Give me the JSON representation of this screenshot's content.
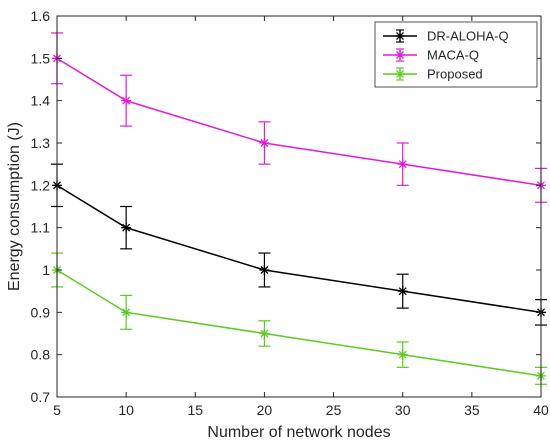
{
  "chart_data": {
    "type": "line",
    "title": "",
    "xlabel": "Number of network nodes",
    "ylabel": "Energy consumption (J)",
    "xlim": [
      5,
      40
    ],
    "ylim": [
      0.7,
      1.6
    ],
    "xticks": [
      5,
      10,
      15,
      20,
      25,
      30,
      35,
      40
    ],
    "yticks": [
      0.7,
      0.8,
      0.9,
      1.0,
      1.1,
      1.2,
      1.3,
      1.4,
      1.5,
      1.6
    ],
    "xtick_labels": [
      "5",
      "10",
      "15",
      "20",
      "25",
      "30",
      "35",
      "40"
    ],
    "ytick_labels": [
      "0.7",
      "0.8",
      "0.9",
      "1",
      "1.1",
      "1.2",
      "1.3",
      "1.4",
      "1.5",
      "1.6"
    ],
    "grid": false,
    "legend_position": "top-right",
    "x": [
      5,
      10,
      20,
      30,
      40
    ],
    "series": [
      {
        "name": "DR-ALOHA-Q",
        "color": "#000000",
        "marker": "star",
        "values": [
          1.2,
          1.1,
          1.0,
          0.95,
          0.9
        ],
        "errors": [
          0.05,
          0.05,
          0.04,
          0.04,
          0.03
        ]
      },
      {
        "name": "MACA-Q",
        "color": "#e31ad8",
        "marker": "star",
        "values": [
          1.5,
          1.4,
          1.3,
          1.25,
          1.2
        ],
        "errors": [
          0.06,
          0.06,
          0.05,
          0.05,
          0.04
        ]
      },
      {
        "name": "Proposed",
        "color": "#5ccc1f",
        "marker": "star",
        "values": [
          1.0,
          0.9,
          0.85,
          0.8,
          0.75
        ],
        "errors": [
          0.04,
          0.04,
          0.03,
          0.03,
          0.02
        ]
      }
    ]
  }
}
